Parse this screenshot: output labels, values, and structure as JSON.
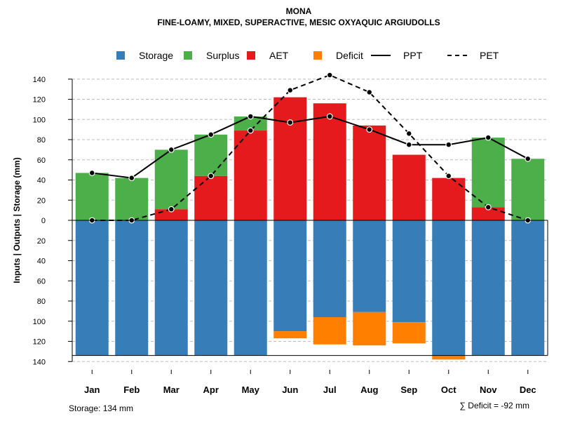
{
  "chart_data": {
    "type": "bar",
    "title": "MONA",
    "subtitle": "FINE-LOAMY, MIXED, SUPERACTIVE, MESIC OXYAQUIC ARGIUDOLLS",
    "ylabel": "Inputs | Outputs | Storage    (mm)",
    "ylim": [
      -140,
      150
    ],
    "yticks": [
      140,
      120,
      100,
      80,
      60,
      40,
      20,
      0,
      20,
      40,
      60,
      80,
      100,
      120,
      140
    ],
    "categories": [
      "Jan",
      "Feb",
      "Mar",
      "Apr",
      "May",
      "Jun",
      "Jul",
      "Aug",
      "Sep",
      "Oct",
      "Nov",
      "Dec"
    ],
    "legend": [
      {
        "label": "Storage",
        "color": "#377EB8",
        "kind": "box"
      },
      {
        "label": "Surplus",
        "color": "#4DAF4A",
        "kind": "box"
      },
      {
        "label": "AET",
        "color": "#E41A1C",
        "kind": "box"
      },
      {
        "label": "Deficit",
        "color": "#FF7F00",
        "kind": "box"
      },
      {
        "label": "PPT",
        "color": "#000000",
        "kind": "solid"
      },
      {
        "label": "PET",
        "color": "#000000",
        "kind": "dashed"
      }
    ],
    "series": [
      {
        "name": "AET",
        "values": [
          0,
          0,
          11,
          44,
          89,
          122,
          116,
          94,
          65,
          42,
          13,
          0
        ]
      },
      {
        "name": "Surplus",
        "values": [
          47,
          42,
          59,
          41,
          14,
          0,
          0,
          0,
          0,
          0,
          69,
          61
        ]
      },
      {
        "name": "Storage",
        "values": [
          134,
          134,
          134,
          134,
          134,
          110,
          96,
          91,
          101,
          134,
          134,
          134
        ]
      },
      {
        "name": "Deficit",
        "values": [
          0,
          0,
          0,
          0,
          0,
          7,
          27,
          33,
          21,
          4,
          0,
          0
        ]
      },
      {
        "name": "PPT",
        "values": [
          47,
          42,
          70,
          85,
          103,
          97,
          103,
          90,
          75,
          75,
          82,
          61
        ]
      },
      {
        "name": "PET",
        "values": [
          0,
          0,
          11,
          44,
          89,
          129,
          144,
          127,
          86,
          44,
          13,
          0
        ]
      }
    ],
    "footer_left": "Storage: 134 mm",
    "footer_right": "∑ Deficit = -92 mm"
  }
}
